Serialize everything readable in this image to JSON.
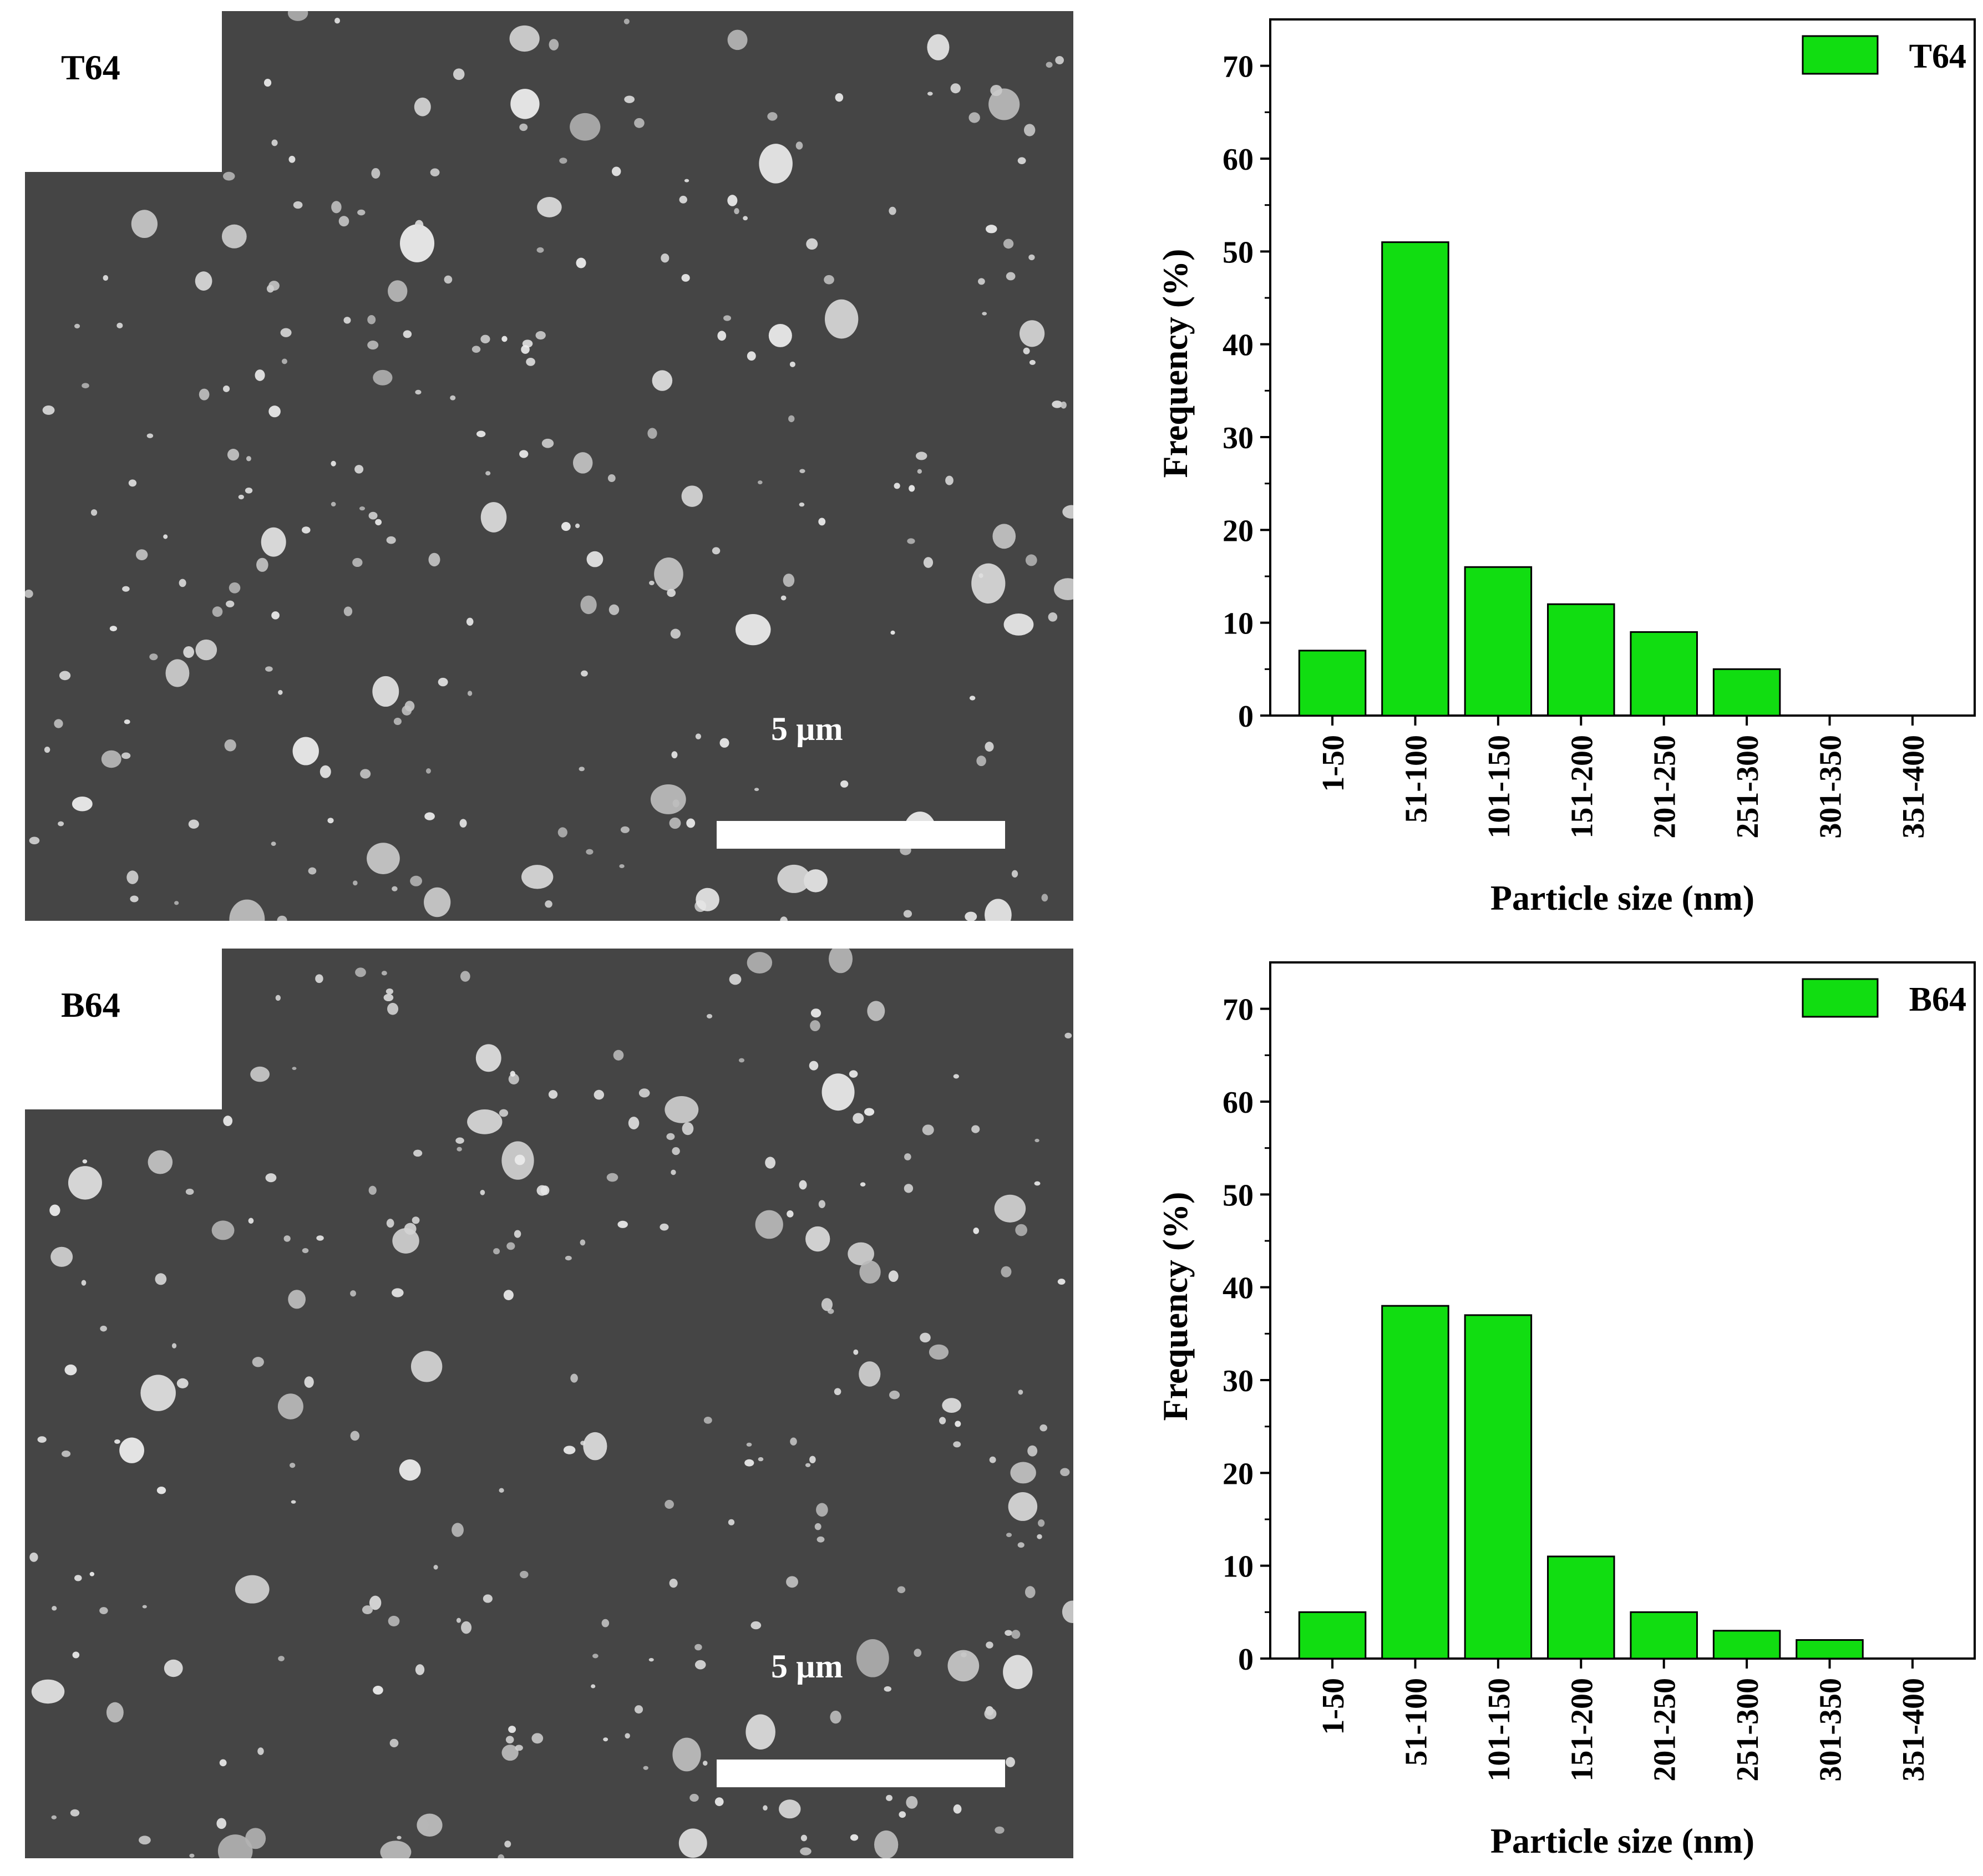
{
  "panels": [
    {
      "sem": {
        "label": "T64",
        "scale_label": "5 µm"
      },
      "chart_data": {
        "type": "bar",
        "xlabel": "Particle size (nm)",
        "ylabel": "Frequency (%)",
        "categories": [
          "1-50",
          "51-100",
          "101-150",
          "151-200",
          "201-250",
          "251-300",
          "301-350",
          "351-400"
        ],
        "series": [
          {
            "name": "T64",
            "values": [
              7,
              51,
              16,
              12,
              9,
              5,
              0,
              0
            ]
          }
        ],
        "ylim": [
          0,
          75
        ],
        "yticks": [
          0,
          10,
          20,
          30,
          40,
          50,
          60,
          70
        ],
        "legend": "top-right",
        "bar_color": "#11dd11",
        "grid": false
      }
    },
    {
      "sem": {
        "label": "B64",
        "scale_label": "5 µm"
      },
      "chart_data": {
        "type": "bar",
        "xlabel": "Particle size (nm)",
        "ylabel": "Frequency (%)",
        "categories": [
          "1-50",
          "51-100",
          "101-150",
          "151-200",
          "201-250",
          "251-300",
          "301-350",
          "351-400"
        ],
        "series": [
          {
            "name": "B64",
            "values": [
              5,
              38,
              37,
              11,
              5,
              3,
              2,
              0
            ]
          }
        ],
        "ylim": [
          0,
          75
        ],
        "yticks": [
          0,
          10,
          20,
          30,
          40,
          50,
          60,
          70
        ],
        "legend": "top-right",
        "bar_color": "#11dd11",
        "grid": false
      }
    }
  ]
}
